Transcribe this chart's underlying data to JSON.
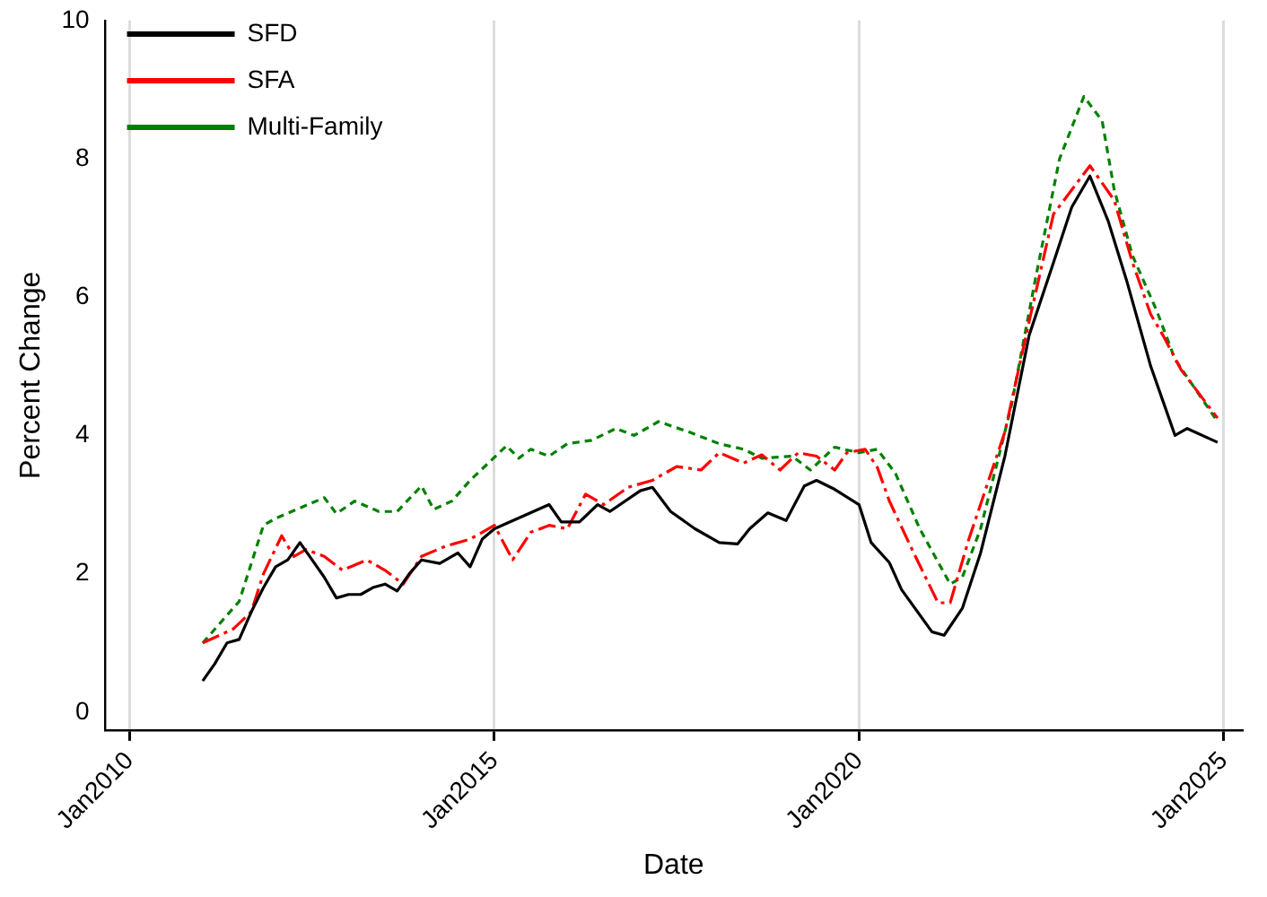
{
  "chart_data": {
    "type": "line",
    "xlabel": "Date",
    "ylabel": "Percent Change",
    "xlim": [
      "2009-09",
      "2025-04"
    ],
    "ylim": [
      -0.26,
      10
    ],
    "xticks": [
      {
        "value": "2010-01",
        "label": "Jan2010"
      },
      {
        "value": "2015-01",
        "label": "Jan2015"
      },
      {
        "value": "2020-01",
        "label": "Jan2020"
      },
      {
        "value": "2025-01",
        "label": "Jan2025"
      }
    ],
    "yticks": [
      0,
      2,
      4,
      6,
      8,
      10
    ],
    "grid": "x",
    "legend": "top left",
    "series": [
      {
        "name": "SFD",
        "color": "#000000",
        "line_style": "solid",
        "x": [
          "2011-01",
          "2011-03",
          "2011-05",
          "2011-07",
          "2011-09",
          "2011-11",
          "2012-01",
          "2012-03",
          "2012-05",
          "2012-07",
          "2012-09",
          "2012-11",
          "2013-01",
          "2013-03",
          "2013-05",
          "2013-07",
          "2013-09",
          "2013-11",
          "2014-01",
          "2014-04",
          "2014-07",
          "2014-09",
          "2014-11",
          "2015-01",
          "2015-10",
          "2015-12",
          "2016-03",
          "2016-06",
          "2016-08",
          "2017-01",
          "2017-03",
          "2017-06",
          "2017-10",
          "2018-02",
          "2018-05",
          "2018-07",
          "2018-10",
          "2019-01",
          "2019-04",
          "2019-06",
          "2019-09",
          "2020-01",
          "2020-03",
          "2020-06",
          "2020-08",
          "2021-01",
          "2021-03",
          "2021-06",
          "2021-09",
          "2022-01",
          "2022-05",
          "2022-09",
          "2022-12",
          "2023-03",
          "2023-06",
          "2023-09",
          "2024-01",
          "2024-03",
          "2024-05",
          "2024-07",
          "2024-12"
        ],
        "values": [
          0.45,
          0.7,
          1.0,
          1.05,
          1.45,
          1.8,
          2.1,
          2.2,
          2.45,
          2.2,
          1.95,
          1.65,
          1.7,
          1.7,
          1.8,
          1.85,
          1.75,
          2.0,
          2.2,
          2.15,
          2.3,
          2.1,
          2.5,
          2.65,
          3.0,
          2.75,
          2.75,
          3.0,
          2.9,
          3.2,
          3.25,
          2.9,
          2.65,
          2.45,
          2.43,
          2.65,
          2.88,
          2.77,
          3.27,
          3.35,
          3.22,
          3.0,
          2.45,
          2.16,
          1.77,
          1.16,
          1.11,
          1.5,
          2.3,
          3.7,
          5.45,
          6.5,
          7.3,
          7.75,
          7.1,
          6.25,
          5.0,
          4.5,
          4.0,
          4.1,
          3.9
        ]
      },
      {
        "name": "SFA",
        "color": "#ff0000",
        "line_style": "dashed",
        "x": [
          "2011-01",
          "2011-06",
          "2011-09",
          "2011-11",
          "2012-02",
          "2012-04",
          "2012-06",
          "2012-09",
          "2012-12",
          "2013-04",
          "2013-07",
          "2013-10",
          "2014-01",
          "2014-05",
          "2014-09",
          "2015-01",
          "2015-04",
          "2015-07",
          "2015-10",
          "2016-01",
          "2016-04",
          "2016-07",
          "2016-11",
          "2017-03",
          "2017-07",
          "2017-11",
          "2018-02",
          "2018-06",
          "2018-09",
          "2018-12",
          "2019-03",
          "2019-06",
          "2019-09",
          "2019-11",
          "2020-02",
          "2020-04",
          "2020-06",
          "2020-10",
          "2021-02",
          "2021-04",
          "2021-07",
          "2022-01",
          "2022-05",
          "2022-09",
          "2023-03",
          "2023-07",
          "2023-10",
          "2024-01",
          "2024-03",
          "2024-06",
          "2024-12"
        ],
        "values": [
          1.0,
          1.2,
          1.45,
          2.0,
          2.55,
          2.25,
          2.35,
          2.25,
          2.05,
          2.2,
          2.05,
          1.85,
          2.25,
          2.4,
          2.5,
          2.7,
          2.2,
          2.6,
          2.7,
          2.65,
          3.15,
          3.0,
          3.25,
          3.35,
          3.55,
          3.5,
          3.75,
          3.6,
          3.72,
          3.5,
          3.75,
          3.7,
          3.5,
          3.75,
          3.8,
          3.54,
          3.05,
          2.3,
          1.58,
          1.58,
          2.48,
          4.05,
          5.65,
          7.2,
          7.9,
          7.4,
          6.5,
          5.75,
          5.45,
          4.95,
          4.25
        ]
      },
      {
        "name": "Multi-Family",
        "color": "#008000",
        "line_style": "dotted",
        "x": [
          "2011-01",
          "2011-07",
          "2011-11",
          "2012-01",
          "2012-05",
          "2012-09",
          "2012-11",
          "2013-02",
          "2013-06",
          "2013-09",
          "2014-01",
          "2014-03",
          "2014-06",
          "2014-09",
          "2014-12",
          "2015-03",
          "2015-05",
          "2015-07",
          "2015-10",
          "2016-01",
          "2016-05",
          "2016-09",
          "2016-12",
          "2017-04",
          "2017-09",
          "2018-02",
          "2018-06",
          "2018-09",
          "2019-02",
          "2019-05",
          "2019-09",
          "2020-01",
          "2020-04",
          "2020-07",
          "2020-11",
          "2021-04",
          "2021-06",
          "2021-09",
          "2022-02",
          "2022-06",
          "2022-10",
          "2023-02",
          "2023-05",
          "2023-07",
          "2023-10",
          "2024-02",
          "2024-05",
          "2024-12"
        ],
        "values": [
          1.0,
          1.6,
          2.7,
          2.8,
          2.95,
          3.1,
          2.87,
          3.05,
          2.9,
          2.9,
          3.27,
          2.93,
          3.05,
          3.35,
          3.6,
          3.85,
          3.67,
          3.8,
          3.7,
          3.88,
          3.93,
          4.1,
          4.0,
          4.2,
          4.05,
          3.88,
          3.8,
          3.67,
          3.7,
          3.5,
          3.83,
          3.75,
          3.8,
          3.45,
          2.65,
          1.85,
          1.95,
          2.65,
          4.4,
          6.25,
          8.0,
          8.9,
          8.55,
          7.55,
          6.6,
          5.8,
          5.1,
          4.2
        ]
      }
    ]
  }
}
